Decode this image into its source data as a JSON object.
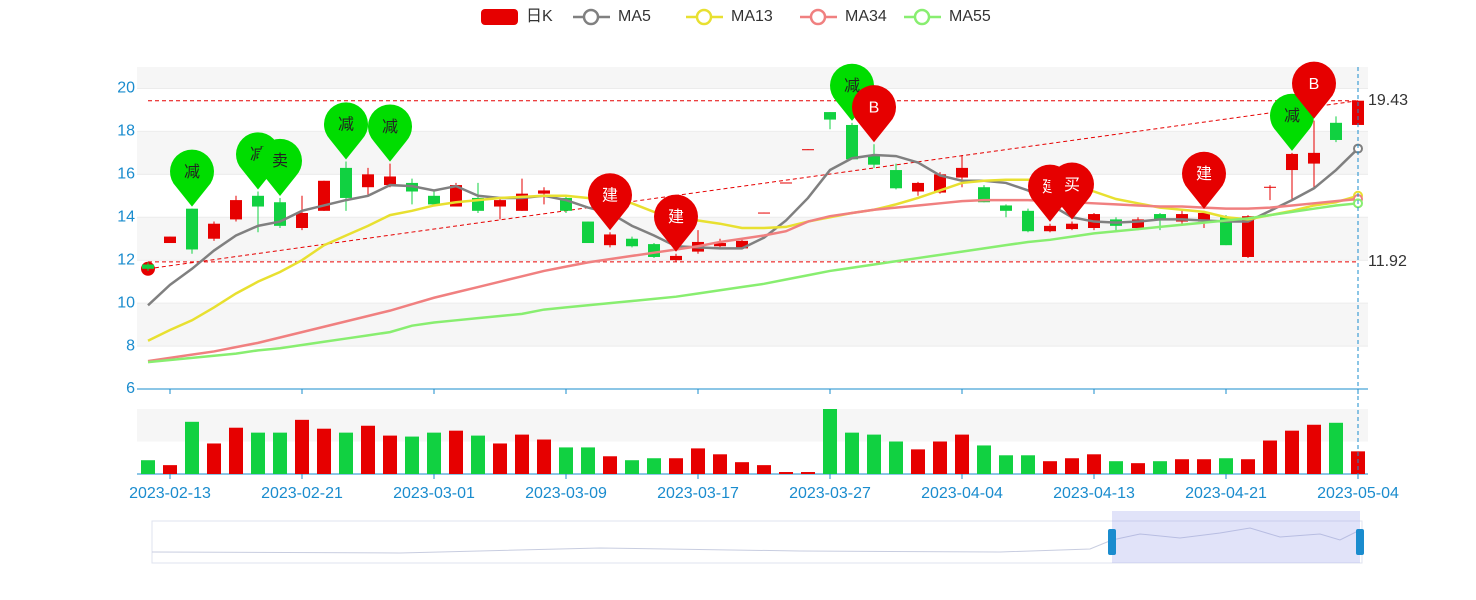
{
  "chart_data": {
    "type": "candlestick",
    "categories": [
      null,
      "2023-02-13",
      null,
      null,
      null,
      null,
      null,
      "2023-02-21",
      null,
      null,
      null,
      null,
      null,
      "2023-03-01",
      null,
      null,
      null,
      null,
      null,
      "2023-03-09",
      null,
      null,
      null,
      null,
      null,
      "2023-03-17",
      null,
      null,
      null,
      null,
      null,
      "2023-03-27",
      null,
      null,
      null,
      null,
      null,
      "2023-04-04",
      null,
      null,
      null,
      null,
      null,
      "2023-04-13",
      null,
      null,
      null,
      null,
      null,
      "2023-04-21",
      null,
      null,
      null,
      null,
      null,
      "2023-05-04"
    ],
    "ylim": [
      6,
      21
    ],
    "yticks": [
      6,
      8,
      10,
      12,
      14,
      16,
      18,
      20
    ],
    "series": [
      {
        "name": "日K",
        "type": "candlestick",
        "color": "#e60000",
        "down_color": "#11d141",
        "values": [
          [
            11.8,
            11.6,
            11.5,
            11.9
          ],
          [
            12.8,
            13.1,
            12.8,
            13.1
          ],
          [
            14.4,
            12.5,
            12.3,
            14.4
          ],
          [
            13.0,
            13.7,
            12.9,
            13.8
          ],
          [
            13.9,
            14.8,
            13.8,
            15.0
          ],
          [
            15.0,
            14.5,
            13.3,
            15.2
          ],
          [
            14.7,
            13.6,
            13.5,
            14.9
          ],
          [
            13.5,
            14.2,
            13.4,
            15.0
          ],
          [
            14.3,
            15.7,
            14.3,
            15.7
          ],
          [
            16.3,
            14.9,
            14.3,
            16.6
          ],
          [
            15.4,
            16.0,
            15.0,
            16.3
          ],
          [
            15.5,
            15.9,
            15.4,
            16.5
          ],
          [
            15.6,
            15.2,
            14.6,
            15.8
          ],
          [
            15.0,
            14.6,
            14.5,
            15.2
          ],
          [
            14.5,
            15.5,
            14.5,
            15.6
          ],
          [
            14.9,
            14.3,
            14.2,
            15.6
          ],
          [
            14.5,
            14.8,
            13.9,
            14.9
          ],
          [
            14.3,
            15.1,
            14.3,
            15.8
          ],
          [
            15.1,
            15.25,
            14.6,
            15.4
          ],
          [
            14.9,
            14.3,
            14.2,
            15.0
          ],
          [
            13.8,
            12.8,
            12.8,
            13.8
          ],
          [
            12.7,
            13.2,
            12.6,
            13.3
          ],
          [
            13.0,
            12.65,
            12.6,
            13.1
          ],
          [
            12.75,
            12.15,
            12.1,
            12.8
          ],
          [
            12.0,
            12.2,
            11.92,
            12.3
          ],
          [
            12.4,
            12.85,
            12.3,
            13.4
          ],
          [
            12.65,
            12.8,
            12.6,
            13.0
          ],
          [
            12.55,
            12.9,
            12.5,
            13.0
          ],
          [
            14.2,
            14.22,
            14.2,
            14.22
          ],
          [
            15.6,
            15.62,
            15.6,
            15.62
          ],
          [
            17.15,
            17.17,
            17.15,
            17.17
          ],
          [
            18.9,
            18.55,
            18.1,
            18.9
          ],
          [
            18.3,
            16.7,
            16.7,
            18.4
          ],
          [
            16.9,
            16.45,
            16.3,
            17.4
          ],
          [
            16.2,
            15.35,
            15.3,
            16.5
          ],
          [
            15.2,
            15.6,
            15.0,
            15.65
          ],
          [
            15.15,
            16.0,
            15.1,
            16.1
          ],
          [
            15.85,
            16.3,
            15.4,
            16.9
          ],
          [
            15.4,
            14.7,
            14.7,
            15.5
          ],
          [
            14.55,
            14.3,
            14.0,
            14.6
          ],
          [
            14.3,
            13.35,
            13.3,
            14.4
          ],
          [
            13.35,
            13.6,
            13.3,
            13.7
          ],
          [
            13.45,
            13.7,
            13.4,
            13.8
          ],
          [
            13.5,
            14.15,
            13.4,
            14.2
          ],
          [
            13.9,
            13.6,
            13.4,
            14.0
          ],
          [
            13.5,
            13.9,
            13.4,
            14.0
          ],
          [
            14.15,
            13.85,
            13.4,
            14.2
          ],
          [
            13.8,
            14.15,
            13.7,
            14.3
          ],
          [
            13.8,
            14.2,
            13.5,
            14.3
          ],
          [
            14.0,
            12.7,
            12.7,
            14.1
          ],
          [
            12.15,
            14.05,
            12.1,
            14.1
          ],
          [
            15.4,
            15.42,
            14.8,
            15.5
          ],
          [
            16.2,
            16.95,
            14.8,
            17.0
          ],
          [
            16.5,
            17.0,
            15.35,
            18.5
          ],
          [
            18.4,
            17.6,
            17.5,
            18.7
          ],
          [
            18.3,
            19.43,
            18.2,
            19.43
          ]
        ]
      },
      {
        "name": "MA5",
        "type": "line",
        "color": "#808080",
        "values": [
          9.9,
          10.85,
          11.6,
          12.45,
          13.15,
          13.6,
          13.8,
          14.3,
          14.55,
          14.8,
          15.0,
          15.5,
          15.45,
          15.25,
          15.45,
          15.0,
          14.9,
          14.9,
          15.0,
          14.8,
          14.45,
          14.2,
          13.6,
          13.15,
          12.65,
          12.6,
          12.55,
          12.55,
          13.05,
          13.85,
          14.9,
          16.2,
          16.75,
          16.9,
          16.85,
          16.55,
          15.95,
          15.7,
          15.7,
          15.6,
          15.25,
          14.6,
          14.0,
          13.8,
          13.75,
          13.8,
          13.9,
          13.9,
          13.85,
          13.8,
          13.8,
          14.3,
          14.8,
          15.35,
          16.2,
          17.2
        ]
      },
      {
        "name": "MA13",
        "type": "line",
        "color": "#e8e030",
        "values": [
          8.25,
          8.75,
          9.2,
          9.8,
          10.45,
          11.0,
          11.45,
          12.0,
          12.7,
          13.15,
          13.6,
          14.1,
          14.3,
          14.55,
          14.7,
          14.8,
          14.9,
          14.95,
          15.0,
          15.0,
          14.9,
          14.8,
          14.65,
          14.25,
          14.0,
          13.85,
          13.7,
          13.5,
          13.5,
          13.55,
          13.8,
          14.0,
          14.2,
          14.35,
          14.6,
          14.9,
          15.25,
          15.6,
          15.7,
          15.75,
          15.75,
          15.7,
          15.6,
          15.2,
          14.85,
          14.65,
          14.45,
          14.35,
          14.25,
          14.0,
          13.9,
          14.1,
          14.3,
          14.55,
          14.7,
          15.0
        ]
      },
      {
        "name": "MA34",
        "type": "line",
        "color": "#f08080",
        "values": [
          7.3,
          7.45,
          7.6,
          7.75,
          7.95,
          8.15,
          8.4,
          8.65,
          8.9,
          9.15,
          9.4,
          9.65,
          9.95,
          10.25,
          10.5,
          10.75,
          11.0,
          11.25,
          11.5,
          11.7,
          11.9,
          12.05,
          12.2,
          12.35,
          12.5,
          12.65,
          12.85,
          13.0,
          13.15,
          13.35,
          13.8,
          14.05,
          14.2,
          14.35,
          14.45,
          14.55,
          14.65,
          14.75,
          14.8,
          14.8,
          14.8,
          14.75,
          14.7,
          14.65,
          14.6,
          14.55,
          14.5,
          14.5,
          14.45,
          14.4,
          14.4,
          14.45,
          14.55,
          14.65,
          14.75,
          14.85
        ]
      },
      {
        "name": "MA55",
        "type": "line",
        "color": "#88ee70",
        "values": [
          7.25,
          7.35,
          7.45,
          7.55,
          7.65,
          7.8,
          7.9,
          8.05,
          8.2,
          8.35,
          8.5,
          8.65,
          8.95,
          9.1,
          9.2,
          9.3,
          9.4,
          9.5,
          9.7,
          9.8,
          9.9,
          10.0,
          10.1,
          10.2,
          10.3,
          10.45,
          10.6,
          10.75,
          10.9,
          11.1,
          11.3,
          11.5,
          11.65,
          11.8,
          11.95,
          12.1,
          12.25,
          12.4,
          12.55,
          12.7,
          12.85,
          12.95,
          13.1,
          13.25,
          13.35,
          13.45,
          13.55,
          13.65,
          13.75,
          13.85,
          13.95,
          14.1,
          14.25,
          14.4,
          14.55,
          14.65
        ]
      }
    ],
    "volumes": [
      14,
      9,
      53,
      31,
      47,
      42,
      42,
      55,
      46,
      42,
      49,
      39,
      38,
      42,
      44,
      39,
      31,
      40,
      35,
      27,
      27,
      18,
      14,
      16,
      16,
      26,
      20,
      12,
      9,
      2,
      2,
      66,
      42,
      40,
      33,
      25,
      33,
      40,
      29,
      19,
      19,
      13,
      16,
      20,
      13,
      11,
      13,
      15,
      15,
      16,
      15,
      34,
      44,
      50,
      52,
      23
    ],
    "volume_ylim": [
      0,
      66
    ],
    "mark_lines": [
      19.43,
      11.92
    ],
    "trend_line": [
      11.6,
      19.43
    ],
    "pins": [
      null,
      null,
      "减",
      null,
      null,
      "减",
      "卖",
      null,
      null,
      "减",
      null,
      "减",
      null,
      null,
      null,
      null,
      null,
      null,
      null,
      null,
      null,
      "建",
      null,
      null,
      "建",
      null,
      null,
      null,
      null,
      null,
      null,
      null,
      "减",
      "B",
      null,
      null,
      null,
      null,
      null,
      null,
      null,
      "建",
      "买",
      null,
      null,
      null,
      null,
      null,
      "建",
      null,
      null,
      null,
      "减",
      "B",
      null
    ],
    "pin_colors": [
      null,
      null,
      "#00dd00",
      null,
      null,
      "#00dd00",
      "#00dd00",
      null,
      null,
      "#00dd00",
      null,
      "#00dd00",
      null,
      null,
      null,
      null,
      null,
      null,
      null,
      null,
      null,
      "#e60000",
      null,
      null,
      "#e60000",
      null,
      null,
      null,
      null,
      null,
      null,
      null,
      "#00dd00",
      "#e60000",
      null,
      null,
      null,
      null,
      null,
      null,
      null,
      "#e60000",
      "#e60000",
      null,
      null,
      null,
      null,
      null,
      "#e60000",
      null,
      null,
      null,
      "#00dd00",
      "#e60000",
      null
    ]
  }
}
